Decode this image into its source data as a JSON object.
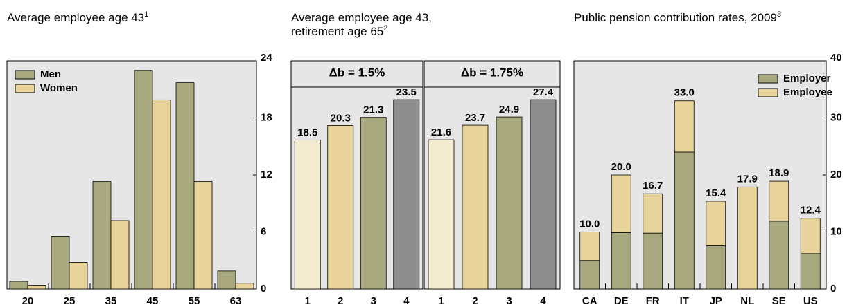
{
  "chart_data": [
    {
      "type": "grouped-bar",
      "title": "Average employee age 43",
      "title_note": "1",
      "categories": [
        "20",
        "25",
        "35",
        "45",
        "55",
        "63"
      ],
      "series": [
        {
          "name": "Men",
          "color": "#a9a97f",
          "values": [
            0.8,
            5.5,
            11.3,
            23.0,
            21.7,
            1.9
          ]
        },
        {
          "name": "Women",
          "color": "#e8d49a",
          "values": [
            0.4,
            2.8,
            7.2,
            19.9,
            11.3,
            0.6
          ]
        }
      ],
      "ylim": [
        0,
        24
      ],
      "yticks": [
        0,
        6,
        12,
        18,
        24
      ],
      "legend": "upper left"
    },
    {
      "type": "panel-bar",
      "title": "Average employee age 43, retirement age 65",
      "title_note": "2",
      "panels": [
        {
          "title": "Δb = 1.5%",
          "categories": [
            "1",
            "2",
            "3",
            "4"
          ],
          "values": [
            18.5,
            20.3,
            21.3,
            23.5
          ],
          "colors": [
            "#f3ebcf",
            "#e8d49a",
            "#a9a97f",
            "#8e8e8e"
          ]
        },
        {
          "title": "Δb = 1.75%",
          "categories": [
            "1",
            "2",
            "3",
            "4"
          ],
          "values": [
            21.6,
            23.7,
            24.9,
            27.4
          ],
          "colors": [
            "#f3ebcf",
            "#e8d49a",
            "#a9a97f",
            "#8e8e8e"
          ]
        }
      ]
    },
    {
      "type": "stacked-bar",
      "title": "Public pension contribution rates, 2009",
      "title_note": "3",
      "categories": [
        "CA",
        "DE",
        "FR",
        "IT",
        "JP",
        "NL",
        "SE",
        "US"
      ],
      "series": [
        {
          "name": "Employer",
          "color": "#a9a97f",
          "values": [
            5.0,
            9.9,
            9.8,
            24.0,
            7.6,
            0,
            11.9,
            6.2
          ]
        },
        {
          "name": "Employee",
          "color": "#e8d49a",
          "values": [
            5.0,
            10.1,
            6.9,
            9.0,
            7.8,
            17.9,
            7.0,
            6.2
          ]
        }
      ],
      "totals": [
        10,
        20,
        16.7,
        33,
        15.4,
        17.9,
        18.9,
        12.4
      ],
      "total_labels": [
        "10.0",
        "20.0",
        "16.7",
        "33.0",
        "15.4",
        "17.9",
        "18.9",
        "12.4"
      ],
      "ylim": [
        0,
        40
      ],
      "yticks": [
        0,
        10,
        20,
        30,
        40
      ],
      "legend": "upper right"
    }
  ]
}
